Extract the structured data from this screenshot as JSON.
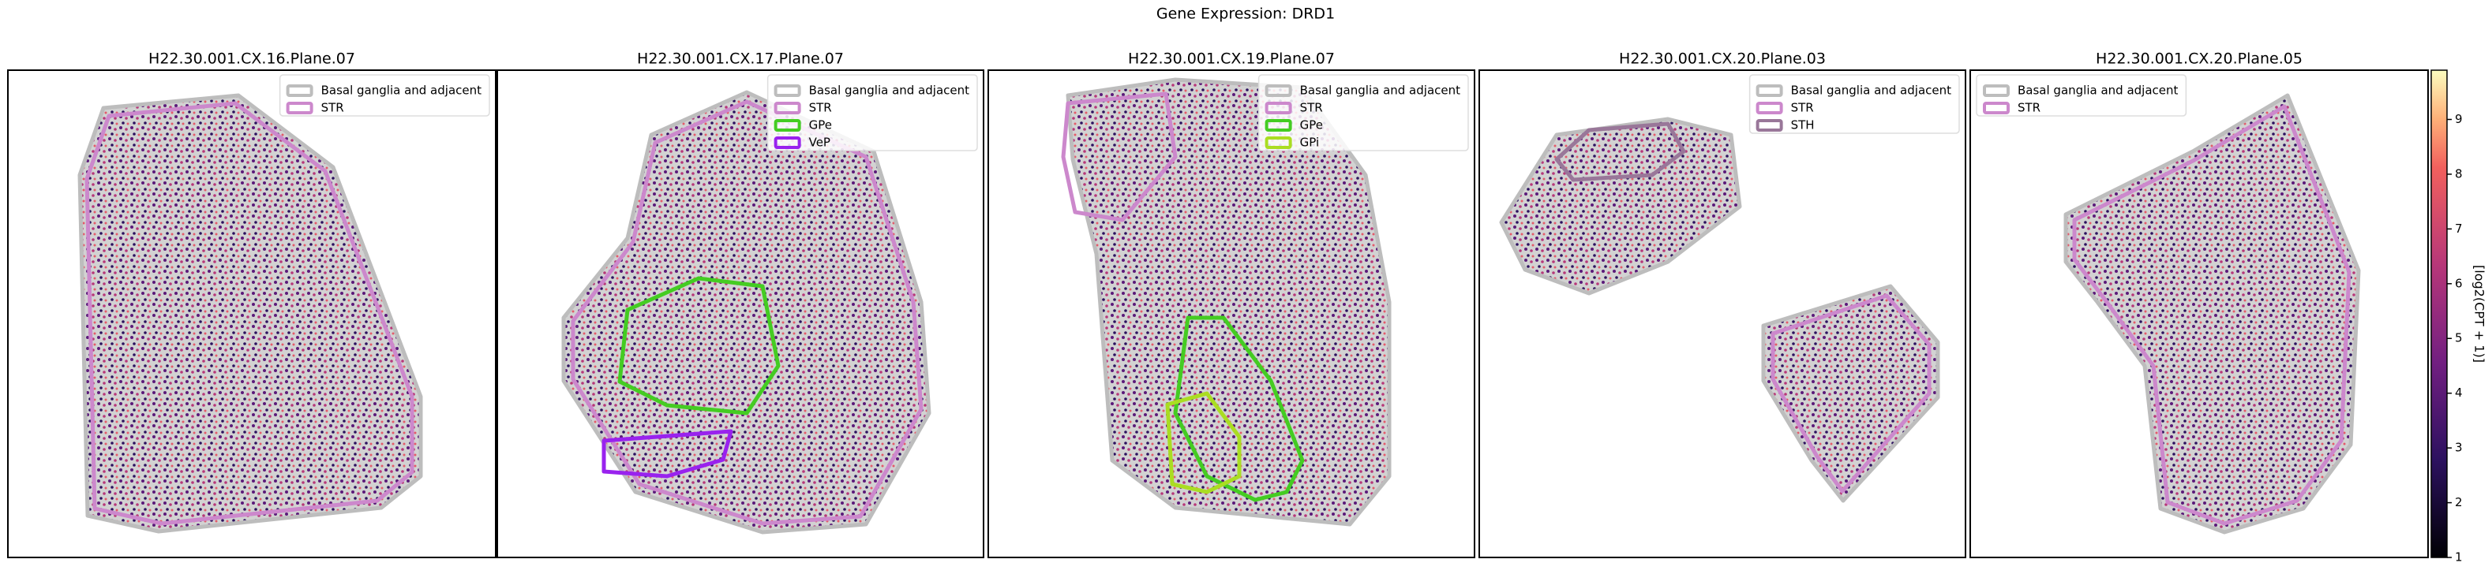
{
  "title": "Gene Expression: DRD1",
  "chart_data": [
    {
      "type": "spatial",
      "title": "H22.30.001.CX.16.Plane.07",
      "legend": "upper right",
      "series": [
        {
          "name": "Basal ganglia and adjacent",
          "color": "#bdbdbd"
        },
        {
          "name": "STR",
          "color": "#cc88cc"
        }
      ]
    },
    {
      "type": "spatial",
      "title": "H22.30.001.CX.17.Plane.07",
      "legend": "upper right",
      "series": [
        {
          "name": "Basal ganglia and adjacent",
          "color": "#bdbdbd"
        },
        {
          "name": "STR",
          "color": "#cc88cc"
        },
        {
          "name": "GPe",
          "color": "#44cc22"
        },
        {
          "name": "VeP",
          "color": "#9922ee"
        }
      ]
    },
    {
      "type": "spatial",
      "title": "H22.30.001.CX.19.Plane.07",
      "legend": "upper right",
      "series": [
        {
          "name": "Basal ganglia and adjacent",
          "color": "#bdbdbd"
        },
        {
          "name": "STR",
          "color": "#cc88cc"
        },
        {
          "name": "GPe",
          "color": "#44cc22"
        },
        {
          "name": "GPi",
          "color": "#aadd22"
        }
      ]
    },
    {
      "type": "spatial",
      "title": "H22.30.001.CX.20.Plane.03",
      "legend": "upper right",
      "series": [
        {
          "name": "Basal ganglia and adjacent",
          "color": "#bdbdbd"
        },
        {
          "name": "STR",
          "color": "#cc88cc"
        },
        {
          "name": "STH",
          "color": "#997799"
        }
      ]
    },
    {
      "type": "spatial",
      "title": "H22.30.001.CX.20.Plane.05",
      "legend": "upper left",
      "series": [
        {
          "name": "Basal ganglia and adjacent",
          "color": "#bdbdbd"
        },
        {
          "name": "STR",
          "color": "#cc88cc"
        }
      ]
    }
  ],
  "colorbar": {
    "label": "[log2(CPT + 1)]",
    "ylim": [
      1,
      9.9
    ],
    "yticks": [
      1,
      2,
      3,
      4,
      5,
      6,
      7,
      8,
      9
    ]
  }
}
